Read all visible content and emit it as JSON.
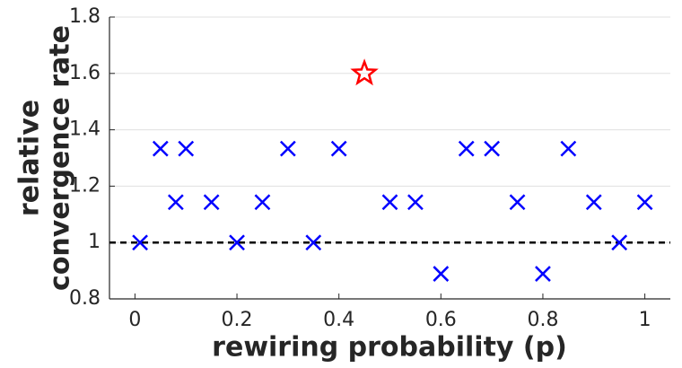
{
  "chart_data": {
    "type": "scatter",
    "xlabel": "rewiring probability (p)",
    "ylabel": [
      "relative",
      "convergence rate"
    ],
    "xlim": [
      -0.05,
      1.05
    ],
    "ylim": [
      0.8,
      1.8
    ],
    "xticks": [
      0,
      0.2,
      0.4,
      0.6,
      0.8,
      1
    ],
    "yticks": [
      0.8,
      1,
      1.2,
      1.4,
      1.6,
      1.8
    ],
    "grid": true,
    "hline": 1,
    "series": [
      {
        "color": "#0000ff",
        "marker": "x",
        "x": [
          0.01,
          0.05,
          0.08,
          0.1,
          0.15,
          0.2,
          0.25,
          0.3,
          0.35,
          0.4,
          0.5,
          0.55,
          0.6,
          0.65,
          0.7,
          0.75,
          0.8,
          0.85,
          0.9,
          0.95,
          1.0
        ],
        "values": [
          1.0,
          1.333,
          1.143,
          1.333,
          1.143,
          1.0,
          1.143,
          1.333,
          1.0,
          1.333,
          1.143,
          1.143,
          0.889,
          1.333,
          1.333,
          1.143,
          0.889,
          1.333,
          1.143,
          1.0,
          1.143
        ]
      },
      {
        "color": "#ff0000",
        "marker": "star",
        "x": [
          0.45
        ],
        "values": [
          1.6
        ]
      }
    ]
  }
}
